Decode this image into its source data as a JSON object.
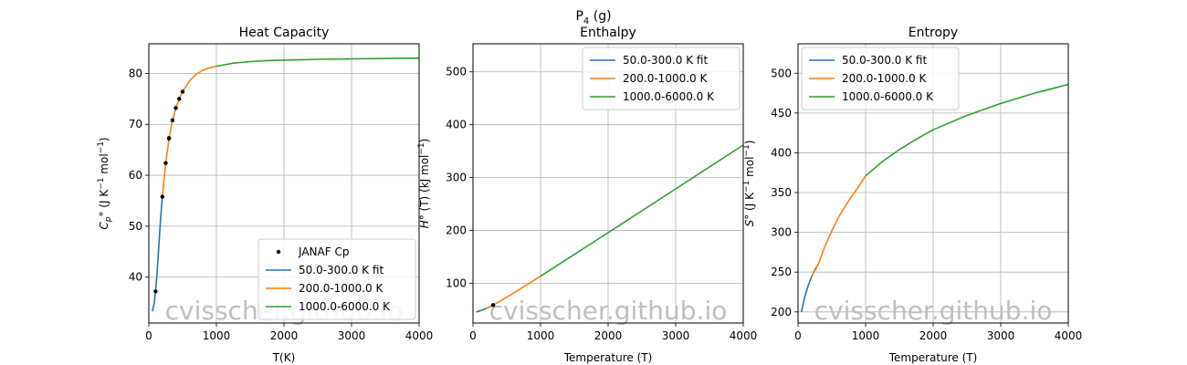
{
  "figure": {
    "suptitle": "P",
    "suptitle_sub": "4",
    "suptitle_rest": " (g)"
  },
  "watermark": "cvisscher.github.io",
  "colors": {
    "fit1": "#1f77b4",
    "fit2": "#ff7f0e",
    "fit3": "#2ca02c",
    "points": "#000000",
    "grid": "#b0b0b0",
    "watermark": "#bfbfbf"
  },
  "chart_data": [
    {
      "type": "line",
      "title": "Heat Capacity",
      "xlabel": "T(K)",
      "ylabel": {
        "pre": "C",
        "sub": "p",
        "post": "° (J K",
        "sup1": "−1",
        "mid": " mol",
        "sup2": "−1",
        "end": ")"
      },
      "xlim": [
        0,
        4000
      ],
      "ylim": [
        31,
        85.8
      ],
      "xticks": [
        0,
        1000,
        2000,
        3000,
        4000
      ],
      "yticks": [
        40,
        50,
        60,
        70,
        80
      ],
      "grid": true,
      "legend": {
        "position": "lower-right",
        "entries": [
          "JANAF Cp",
          "50.0-300.0 K fit",
          "200.0-1000.0 K",
          "1000.0-6000.0 K"
        ]
      },
      "points": {
        "name": "JANAF Cp",
        "x": [
          100,
          200,
          250,
          298.15,
          300,
          350,
          400,
          450,
          500
        ],
        "y": [
          37.2,
          55.8,
          62.4,
          67.2,
          67.3,
          70.8,
          73.2,
          75.0,
          76.4
        ]
      },
      "series": [
        {
          "name": "50.0-300.0 K fit",
          "x": [
            50,
            75,
            100,
            125,
            150,
            175,
            200
          ],
          "y": [
            33.3,
            34.6,
            37.2,
            41.5,
            46.5,
            51.5,
            55.8
          ]
        },
        {
          "name": "200.0-1000.0 K",
          "x": [
            200,
            250,
            300,
            350,
            400,
            450,
            500,
            600,
            700,
            800,
            900,
            1000
          ],
          "y": [
            55.8,
            62.4,
            67.3,
            70.8,
            73.2,
            75.0,
            76.4,
            78.5,
            79.8,
            80.6,
            81.1,
            81.4
          ]
        },
        {
          "name": "1000.0-6000.0 K",
          "x": [
            1000,
            1250,
            1500,
            1750,
            2000,
            2500,
            3000,
            3500,
            4000
          ],
          "y": [
            81.4,
            82.0,
            82.3,
            82.5,
            82.6,
            82.75,
            82.85,
            82.92,
            82.98
          ]
        }
      ]
    },
    {
      "type": "line",
      "title": "Enthalpy",
      "xlabel": "Temperature (T)",
      "ylabel": {
        "pre": "H",
        "post": "° (T) (kJ mol",
        "sup1": "−1",
        "end": ")"
      },
      "xlim": [
        0,
        4000
      ],
      "ylim": [
        25,
        553
      ],
      "xticks": [
        0,
        1000,
        2000,
        3000,
        4000
      ],
      "yticks": [
        100,
        200,
        300,
        400,
        500
      ],
      "grid": true,
      "legend": {
        "position": "upper-right",
        "entries": [
          "50.0-300.0 K fit",
          "200.0-1000.0 K",
          "1000.0-6000.0 K"
        ]
      },
      "points": {
        "name": "",
        "x": [
          298.15
        ],
        "y": [
          58.9
        ]
      },
      "series": [
        {
          "name": "50.0-300.0 K fit",
          "x": [
            50,
            100,
            150,
            200,
            250,
            300
          ],
          "y": [
            46.0,
            48.0,
            50.3,
            52.9,
            55.8,
            59.0
          ]
        },
        {
          "name": "200.0-1000.0 K",
          "x": [
            200,
            300,
            400,
            500,
            600,
            700,
            800,
            900,
            1000
          ],
          "y": [
            52.9,
            59.0,
            66.2,
            73.7,
            81.5,
            89.4,
            97.4,
            105.5,
            113.6
          ]
        },
        {
          "name": "1000.0-6000.0 K",
          "x": [
            1000,
            2000,
            3000,
            4000
          ],
          "y": [
            113.6,
            195.8,
            278.6,
            361.5
          ]
        }
      ]
    },
    {
      "type": "line",
      "title": "Entropy",
      "xlabel": "Temperature (T)",
      "ylabel": {
        "pre": "S",
        "post": "° (J K",
        "sup1": "−1",
        "mid": " mol",
        "sup2": "−1",
        "end": ")"
      },
      "xlim": [
        0,
        4000
      ],
      "ylim": [
        186,
        537
      ],
      "xticks": [
        0,
        1000,
        2000,
        3000,
        4000
      ],
      "yticks": [
        200,
        250,
        300,
        350,
        400,
        450,
        500
      ],
      "grid": true,
      "legend": {
        "position": "upper-left",
        "entries": [
          "50.0-300.0 K fit",
          "200.0-1000.0 K",
          "1000.0-6000.0 K"
        ]
      },
      "series": [
        {
          "name": "50.0-300.0 K fit",
          "x": [
            50,
            100,
            150,
            200,
            250,
            300
          ],
          "y": [
            200,
            219,
            233,
            244,
            253,
            260
          ]
        },
        {
          "name": "200.0-1000.0 K",
          "x": [
            200,
            300,
            400,
            500,
            600,
            700,
            800,
            900,
            1000
          ],
          "y": [
            244,
            260,
            283,
            302,
            319,
            333,
            346,
            358,
            371
          ]
        },
        {
          "name": "1000.0-6000.0 K",
          "x": [
            1000,
            1250,
            1500,
            1750,
            2000,
            2500,
            3000,
            3500,
            4000
          ],
          "y": [
            371,
            389,
            404,
            417,
            429,
            447,
            462,
            475,
            486
          ]
        }
      ]
    }
  ]
}
